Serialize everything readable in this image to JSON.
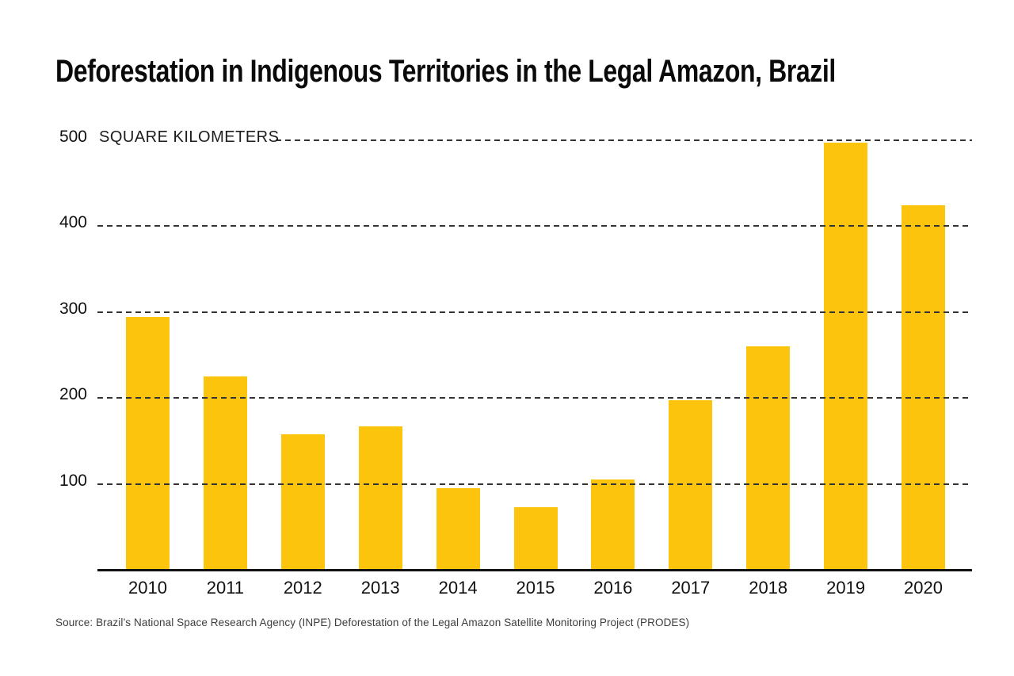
{
  "chart_data": {
    "type": "bar",
    "title": "Deforestation in Indigenous Territories in the Legal Amazon, Brazil",
    "ylabel": "SQUARE KILOMETERS",
    "xlabel": "",
    "categories": [
      "2010",
      "2011",
      "2012",
      "2013",
      "2014",
      "2015",
      "2016",
      "2017",
      "2018",
      "2019",
      "2020"
    ],
    "values": [
      294,
      225,
      158,
      167,
      95,
      73,
      105,
      197,
      260,
      497,
      424
    ],
    "ylim": [
      0,
      500
    ],
    "yticks": [
      100,
      200,
      300,
      400,
      500
    ],
    "grid": "horizontal-dashed",
    "legend_position": "none",
    "bar_color": "#FDC40D"
  },
  "source_note": "Source: Brazil’s National Space Research Agency (INPE) Deforestation of the Legal Amazon Satellite Monitoring Project (PRODES)",
  "colors": {
    "background": "#FFFFFF",
    "bar": "#FDC40D",
    "axis_text": "#111111",
    "gridline": "#333333",
    "source_text": "#3D3D3D"
  }
}
